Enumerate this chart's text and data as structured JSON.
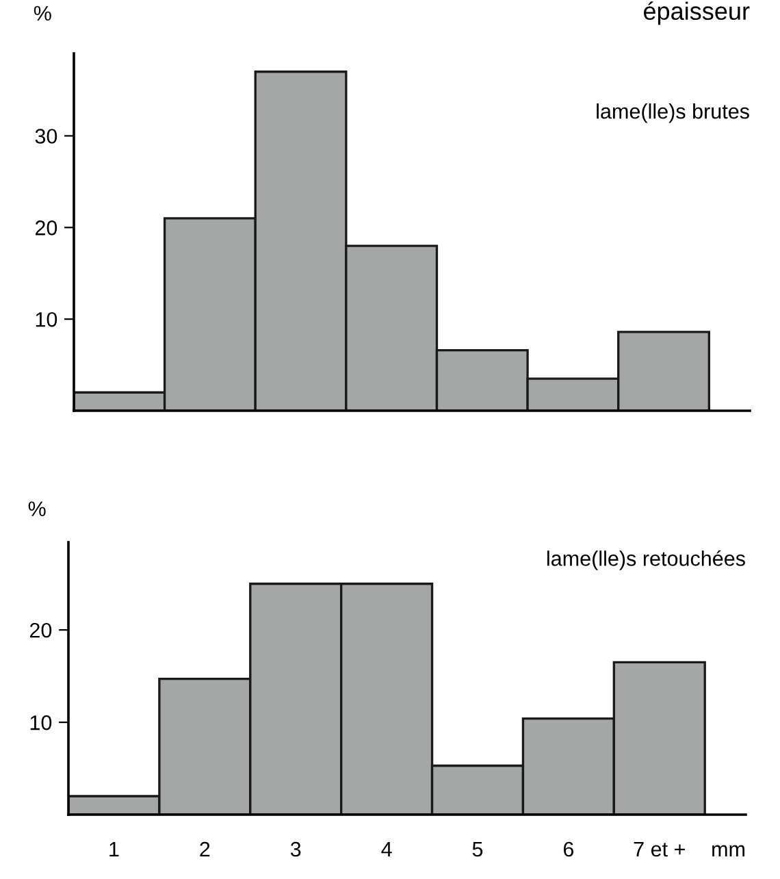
{
  "chart_data": [
    {
      "type": "bar",
      "title": "épaisseur",
      "ylabel": "%",
      "annotations": [
        "lame(lle)s brutes"
      ],
      "categories": [
        null,
        null,
        null,
        null,
        null,
        null,
        null
      ],
      "values": [
        2.0,
        21,
        37,
        18,
        6.6,
        3.5,
        8.6
      ],
      "color": "#a4a7a6",
      "ylim": [
        0,
        39
      ],
      "yticks": [
        10,
        20,
        30
      ],
      "grid": false,
      "tick_labels": "y"
    },
    {
      "type": "bar",
      "ylabel": "%",
      "xlabel": "mm",
      "annotations": [
        "lame(lle)s retouchées"
      ],
      "categories": [
        "1",
        "2",
        "3",
        "4",
        "5",
        "6",
        "7 et +"
      ],
      "values": [
        2.0,
        14.7,
        25,
        25,
        5.3,
        10.4,
        16.5
      ],
      "color": "#a4a7a6",
      "ylim": [
        0,
        29.5
      ],
      "yticks": [
        10,
        20
      ],
      "grid": false
    }
  ]
}
